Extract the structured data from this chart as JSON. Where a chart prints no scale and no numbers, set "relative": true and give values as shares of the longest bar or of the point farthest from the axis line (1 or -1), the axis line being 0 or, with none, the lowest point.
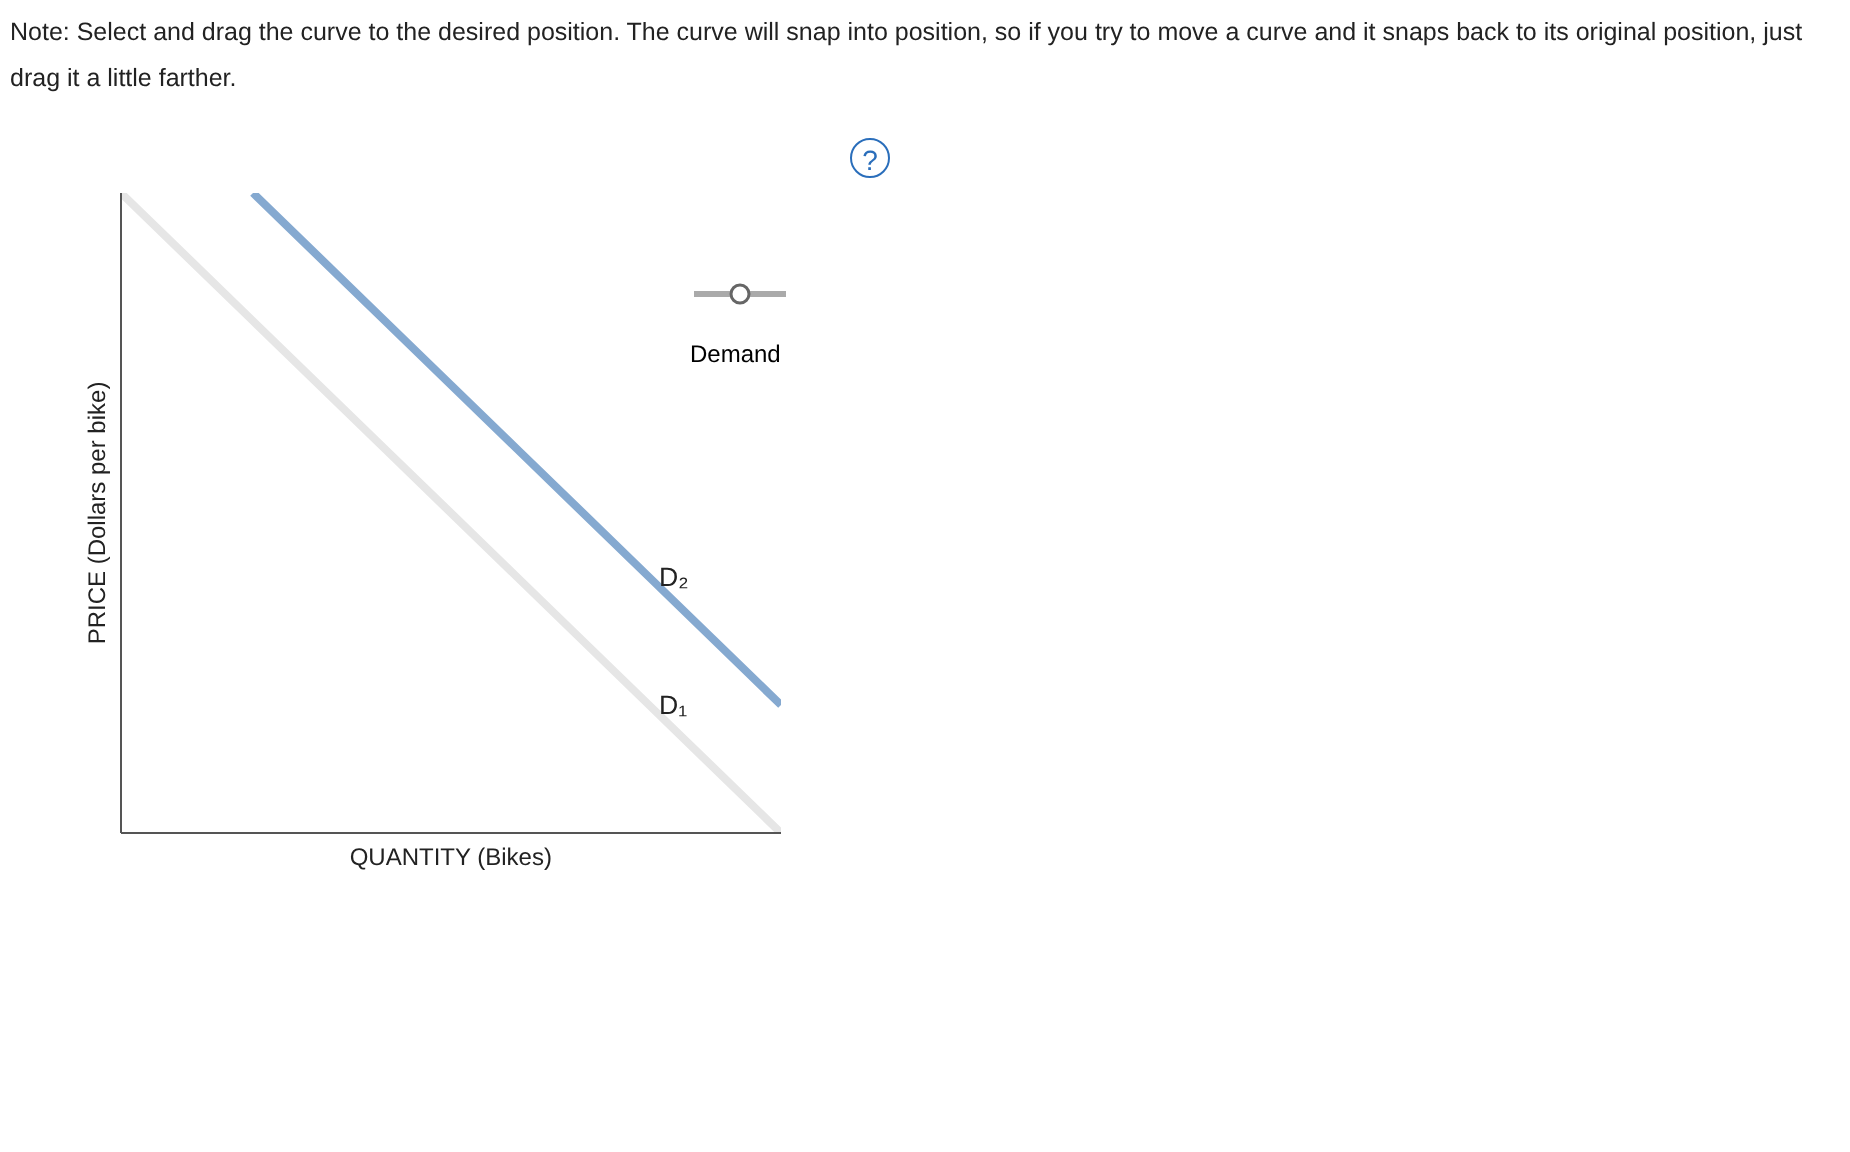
{
  "chart_data": {
    "type": "line",
    "relative": true,
    "xlabel": "QUANTITY (Bikes)",
    "ylabel": "PRICE (Dollars per bike)",
    "categories": [
      null,
      null,
      null,
      null,
      null,
      null
    ],
    "series": [
      {
        "name": "D₁",
        "color": "#e6e6e6",
        "values": [
          1,
          0.8,
          0.6,
          0.4,
          0.2,
          0
        ]
      },
      {
        "name": "D₂",
        "color": "#85a9d0",
        "values": [
          null,
          1,
          0.8,
          0.6,
          0.4,
          0.2
        ]
      }
    ],
    "annotations": [
      "Note: Select and drag the curve to the desired position. The curve will snap into position, so if you try to move a curve and it snaps back to its original position, just drag it a little farther.",
      "Demand",
      "?"
    ]
  }
}
